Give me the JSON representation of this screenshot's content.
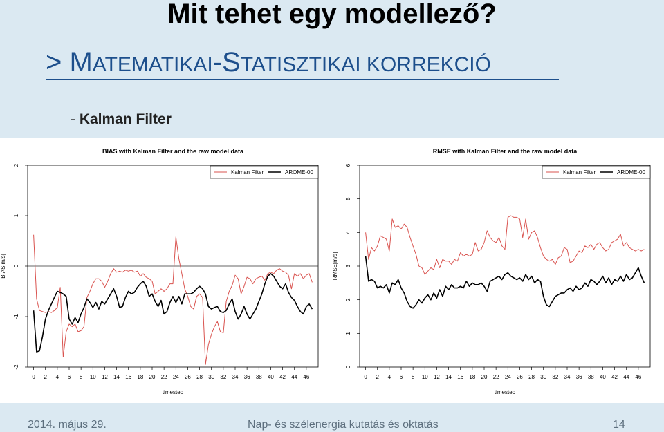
{
  "slide": {
    "title": "Mit tehet egy modellező?",
    "subtitle_prefix": "> M",
    "subtitle_sc1": "ATEMATIKAI",
    "subtitle_mid": "-S",
    "subtitle_sc2": "TATISZTIKAI KORREKCIÓ",
    "bullet_dash": "- ",
    "bullet_text": "Kalman Filter",
    "colors": {
      "background": "#dbe9f2",
      "subtitle": "#1d4f8c",
      "kalman": "#d9534f",
      "arome": "#000000"
    }
  },
  "footer": {
    "date": "2014. május 29.",
    "center": "Nap- és szélenergia kutatás és oktatás",
    "page": "14"
  },
  "chart_data": [
    {
      "type": "line",
      "title": "BIAS with Kalman Filter and the raw model data",
      "xlabel": "timestep",
      "ylabel": "BIAS[m/s]",
      "xlim": [
        -1,
        48
      ],
      "ylim": [
        -2,
        2
      ],
      "xticks": [
        0,
        2,
        4,
        6,
        8,
        10,
        12,
        14,
        16,
        18,
        20,
        22,
        24,
        26,
        28,
        30,
        32,
        34,
        36,
        38,
        40,
        42,
        44,
        46
      ],
      "yticks": [
        -2,
        -1,
        0,
        1,
        2
      ],
      "hline": 0,
      "legend_position": "top-right",
      "grid": false,
      "series": [
        {
          "name": "Kalman Filter",
          "color": "#d9534f",
          "x": [
            0,
            0.5,
            1,
            1.5,
            2,
            2.5,
            3,
            3.5,
            4,
            4.5,
            5,
            5.5,
            6,
            6.5,
            7,
            7.5,
            8,
            8.5,
            9,
            9.5,
            10,
            10.5,
            11,
            11.5,
            12,
            12.5,
            13,
            13.5,
            14,
            14.5,
            15,
            15.5,
            16,
            16.5,
            17,
            17.5,
            18,
            18.5,
            19,
            19.5,
            20,
            20.5,
            21,
            21.5,
            22,
            22.5,
            23,
            23.5,
            24,
            24.5,
            25,
            25.5,
            26,
            26.5,
            27,
            27.5,
            28,
            28.5,
            29,
            29.5,
            30,
            30.5,
            31,
            31.5,
            32,
            32.5,
            33,
            33.5,
            34,
            34.5,
            35,
            35.5,
            36,
            36.5,
            37,
            37.5,
            38,
            38.5,
            39,
            39.5,
            40,
            40.5,
            41,
            41.5,
            42,
            42.5,
            43,
            43.5,
            44,
            44.5,
            45,
            45.5,
            46,
            46.5,
            47
          ],
          "values": [
            0.62,
            -0.65,
            -0.88,
            -0.9,
            -0.92,
            -0.9,
            -0.92,
            -0.88,
            -0.82,
            -0.42,
            -1.8,
            -1.3,
            -1.15,
            -1.2,
            -1.15,
            -1.3,
            -1.28,
            -1.2,
            -0.62,
            -0.5,
            -0.35,
            -0.25,
            -0.25,
            -0.3,
            -0.42,
            -0.3,
            -0.15,
            -0.05,
            -0.12,
            -0.1,
            -0.12,
            -0.08,
            -0.1,
            -0.08,
            -0.12,
            -0.1,
            -0.2,
            -0.15,
            -0.22,
            -0.25,
            -0.3,
            -0.55,
            -0.5,
            -0.45,
            -0.5,
            -0.45,
            -0.35,
            -0.35,
            0.58,
            0.15,
            -0.15,
            -0.45,
            -0.6,
            -0.8,
            -0.85,
            -0.6,
            -0.55,
            -0.62,
            -1.95,
            -1.55,
            -1.35,
            -1.2,
            -1.1,
            -1.3,
            -1.32,
            -0.7,
            -0.5,
            -0.38,
            -0.18,
            -0.25,
            -0.55,
            -0.4,
            -0.22,
            -0.25,
            -0.35,
            -0.25,
            -0.22,
            -0.2,
            -0.28,
            -0.15,
            -0.12,
            -0.15,
            -0.08,
            -0.05,
            -0.1,
            -0.12,
            -0.18,
            -0.45,
            -0.15,
            -0.2,
            -0.15,
            -0.25,
            -0.18,
            -0.15,
            -0.32
          ]
        },
        {
          "name": "AROME-00",
          "color": "#000000",
          "x": [
            0,
            0.5,
            1,
            1.5,
            2,
            2.5,
            3,
            3.5,
            4,
            4.5,
            5,
            5.5,
            6,
            6.5,
            7,
            7.5,
            8,
            8.5,
            9,
            9.5,
            10,
            10.5,
            11,
            11.5,
            12,
            12.5,
            13,
            13.5,
            14,
            14.5,
            15,
            15.5,
            16,
            16.5,
            17,
            17.5,
            18,
            18.5,
            19,
            19.5,
            20,
            20.5,
            21,
            21.5,
            22,
            22.5,
            23,
            23.5,
            24,
            24.5,
            25,
            25.5,
            26,
            26.5,
            27,
            27.5,
            28,
            28.5,
            29,
            29.5,
            30,
            30.5,
            31,
            31.5,
            32,
            32.5,
            33,
            33.5,
            34,
            34.5,
            35,
            35.5,
            36,
            36.5,
            37,
            37.5,
            38,
            38.5,
            39,
            39.5,
            40,
            40.5,
            41,
            41.5,
            42,
            42.5,
            43,
            43.5,
            44,
            44.5,
            45,
            45.5,
            46,
            46.5,
            47
          ],
          "values": [
            -0.88,
            -1.7,
            -1.68,
            -1.4,
            -1.05,
            -0.88,
            -0.75,
            -0.62,
            -0.5,
            -0.52,
            -0.55,
            -0.6,
            -1.05,
            -1.15,
            -1.02,
            -1.12,
            -0.95,
            -0.82,
            -0.65,
            -0.72,
            -0.82,
            -0.72,
            -0.85,
            -0.7,
            -0.75,
            -0.65,
            -0.55,
            -0.45,
            -0.6,
            -0.82,
            -0.8,
            -0.62,
            -0.5,
            -0.55,
            -0.52,
            -0.42,
            -0.35,
            -0.3,
            -0.4,
            -0.6,
            -0.55,
            -0.7,
            -0.8,
            -0.68,
            -0.95,
            -0.9,
            -0.72,
            -0.6,
            -0.72,
            -0.6,
            -0.75,
            -0.55,
            -0.55,
            -0.55,
            -0.52,
            -0.45,
            -0.4,
            -0.45,
            -0.55,
            -0.8,
            -0.85,
            -0.82,
            -0.8,
            -0.9,
            -0.92,
            -0.88,
            -0.75,
            -0.65,
            -0.9,
            -1.05,
            -0.95,
            -0.8,
            -0.95,
            -1.05,
            -0.95,
            -0.85,
            -0.7,
            -0.55,
            -0.35,
            -0.2,
            -0.15,
            -0.2,
            -0.3,
            -0.4,
            -0.45,
            -0.35,
            -0.52,
            -0.62,
            -0.68,
            -0.8,
            -0.9,
            -0.95,
            -0.8,
            -0.75,
            -0.85
          ]
        }
      ]
    },
    {
      "type": "line",
      "title": "RMSE with Kalman Filter and the raw model data",
      "xlabel": "timestep",
      "ylabel": "RMSE[m/s]",
      "xlim": [
        -1,
        48
      ],
      "ylim": [
        0,
        6
      ],
      "xticks": [
        0,
        2,
        4,
        6,
        8,
        10,
        12,
        14,
        16,
        18,
        20,
        22,
        24,
        26,
        28,
        30,
        32,
        34,
        36,
        38,
        40,
        42,
        44,
        46
      ],
      "yticks": [
        0,
        1,
        2,
        3,
        4,
        5,
        6
      ],
      "legend_position": "top-right",
      "grid": false,
      "series": [
        {
          "name": "Kalman Filter",
          "color": "#d9534f",
          "x": [
            0,
            0.5,
            1,
            1.5,
            2,
            2.5,
            3,
            3.5,
            4,
            4.5,
            5,
            5.5,
            6,
            6.5,
            7,
            7.5,
            8,
            8.5,
            9,
            9.5,
            10,
            10.5,
            11,
            11.5,
            12,
            12.5,
            13,
            13.5,
            14,
            14.5,
            15,
            15.5,
            16,
            16.5,
            17,
            17.5,
            18,
            18.5,
            19,
            19.5,
            20,
            20.5,
            21,
            21.5,
            22,
            22.5,
            23,
            23.5,
            24,
            24.5,
            25,
            25.5,
            26,
            26.5,
            27,
            27.5,
            28,
            28.5,
            29,
            29.5,
            30,
            30.5,
            31,
            31.5,
            32,
            32.5,
            33,
            33.5,
            34,
            34.5,
            35,
            35.5,
            36,
            36.5,
            37,
            37.5,
            38,
            38.5,
            39,
            39.5,
            40,
            40.5,
            41,
            41.5,
            42,
            42.5,
            43,
            43.5,
            44,
            44.5,
            45,
            45.5,
            46,
            46.5,
            47
          ],
          "values": [
            4.0,
            3.2,
            3.55,
            3.45,
            3.6,
            3.9,
            3.85,
            3.8,
            3.45,
            4.4,
            4.15,
            4.2,
            4.1,
            4.25,
            4.15,
            3.85,
            3.6,
            3.35,
            3.0,
            2.95,
            2.75,
            2.85,
            2.95,
            2.9,
            3.2,
            2.95,
            3.2,
            3.15,
            3.15,
            3.05,
            3.2,
            3.15,
            3.4,
            3.3,
            3.35,
            3.3,
            3.35,
            3.7,
            3.45,
            3.5,
            3.7,
            4.05,
            3.85,
            3.75,
            3.7,
            3.85,
            3.6,
            3.5,
            4.45,
            4.5,
            4.45,
            4.45,
            4.4,
            3.85,
            4.4,
            3.8,
            4.0,
            4.05,
            3.85,
            3.55,
            3.3,
            3.2,
            3.15,
            3.2,
            3.05,
            3.25,
            3.3,
            3.55,
            3.5,
            3.1,
            3.15,
            3.3,
            3.45,
            3.4,
            3.6,
            3.55,
            3.65,
            3.5,
            3.65,
            3.7,
            3.55,
            3.45,
            3.5,
            3.7,
            3.75,
            3.8,
            3.95,
            3.6,
            3.7,
            3.55,
            3.5,
            3.45,
            3.5,
            3.45,
            3.5
          ]
        },
        {
          "name": "AROME-00",
          "color": "#000000",
          "x": [
            0,
            0.5,
            1,
            1.5,
            2,
            2.5,
            3,
            3.5,
            4,
            4.5,
            5,
            5.5,
            6,
            6.5,
            7,
            7.5,
            8,
            8.5,
            9,
            9.5,
            10,
            10.5,
            11,
            11.5,
            12,
            12.5,
            13,
            13.5,
            14,
            14.5,
            15,
            15.5,
            16,
            16.5,
            17,
            17.5,
            18,
            18.5,
            19,
            19.5,
            20,
            20.5,
            21,
            21.5,
            22,
            22.5,
            23,
            23.5,
            24,
            24.5,
            25,
            25.5,
            26,
            26.5,
            27,
            27.5,
            28,
            28.5,
            29,
            29.5,
            30,
            30.5,
            31,
            31.5,
            32,
            32.5,
            33,
            33.5,
            34,
            34.5,
            35,
            35.5,
            36,
            36.5,
            37,
            37.5,
            38,
            38.5,
            39,
            39.5,
            40,
            40.5,
            41,
            41.5,
            42,
            42.5,
            43,
            43.5,
            44,
            44.5,
            45,
            45.5,
            46,
            46.5,
            47
          ],
          "values": [
            3.3,
            2.55,
            2.6,
            2.55,
            2.35,
            2.4,
            2.35,
            2.45,
            2.2,
            2.5,
            2.45,
            2.6,
            2.35,
            2.2,
            1.95,
            1.8,
            1.75,
            1.85,
            2.0,
            1.9,
            2.05,
            2.15,
            2.0,
            2.2,
            2.05,
            2.3,
            2.1,
            2.4,
            2.3,
            2.45,
            2.35,
            2.35,
            2.4,
            2.35,
            2.55,
            2.4,
            2.5,
            2.45,
            2.45,
            2.5,
            2.4,
            2.25,
            2.55,
            2.6,
            2.65,
            2.7,
            2.6,
            2.75,
            2.8,
            2.7,
            2.65,
            2.6,
            2.65,
            2.55,
            2.75,
            2.6,
            2.7,
            2.5,
            2.6,
            2.55,
            2.1,
            1.85,
            1.8,
            1.95,
            2.1,
            2.15,
            2.2,
            2.2,
            2.3,
            2.35,
            2.25,
            2.4,
            2.3,
            2.35,
            2.5,
            2.4,
            2.6,
            2.55,
            2.45,
            2.55,
            2.7,
            2.5,
            2.65,
            2.45,
            2.6,
            2.55,
            2.7,
            2.55,
            2.75,
            2.6,
            2.65,
            2.8,
            2.95,
            2.7,
            2.5
          ]
        }
      ]
    }
  ]
}
